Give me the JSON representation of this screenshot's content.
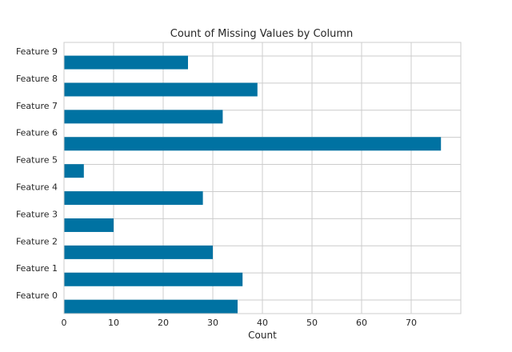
{
  "chart_data": {
    "type": "bar",
    "orientation": "horizontal",
    "title": "Count of Missing Values by Column",
    "xlabel": "Count",
    "ylabel": "",
    "categories": [
      "Feature 0",
      "Feature 1",
      "Feature 2",
      "Feature 3",
      "Feature 4",
      "Feature 5",
      "Feature 6",
      "Feature 7",
      "Feature 8",
      "Feature 9"
    ],
    "values": [
      35,
      36,
      30,
      10,
      28,
      4,
      76,
      32,
      39,
      25
    ],
    "xlim": [
      0,
      80
    ],
    "xticks": [
      0,
      10,
      20,
      30,
      40,
      50,
      60,
      70
    ],
    "grid": true,
    "bar_color": "#0072a2",
    "grid_color": "#cccccc"
  }
}
